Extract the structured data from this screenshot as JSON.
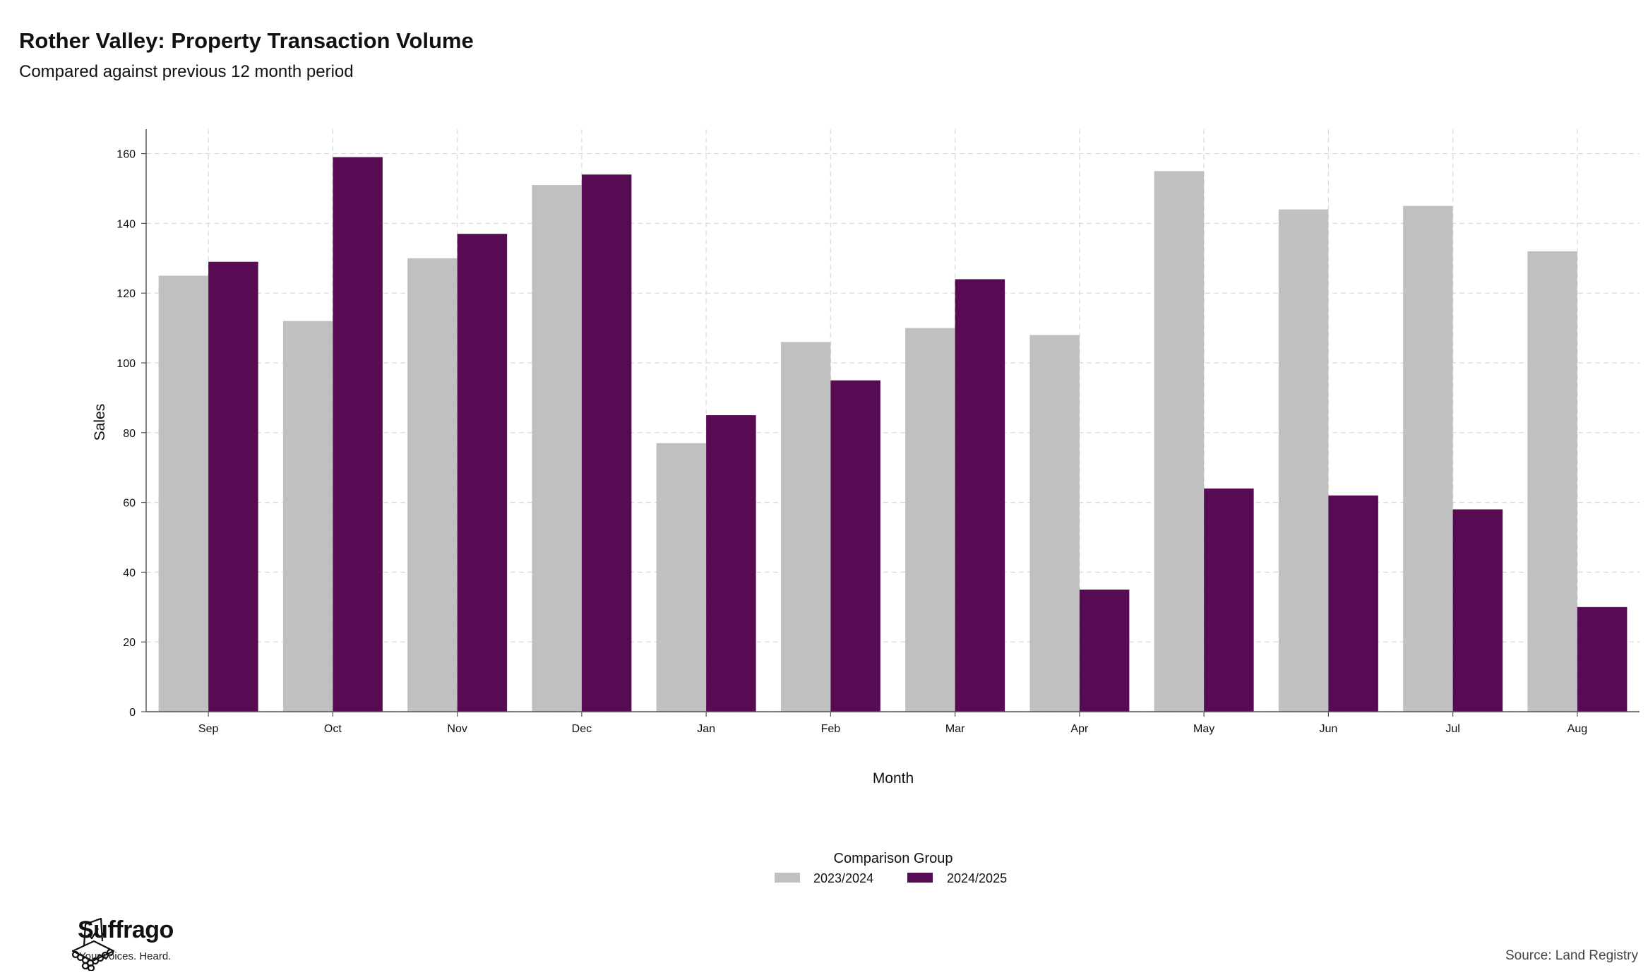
{
  "chart_data": {
    "type": "bar",
    "title": "Rother Valley: Property Transaction Volume",
    "subtitle": "Compared against previous 12 month period",
    "xlabel": "Month",
    "ylabel": "Sales",
    "categories": [
      "Sep",
      "Oct",
      "Nov",
      "Dec",
      "Jan",
      "Feb",
      "Mar",
      "Apr",
      "May",
      "Jun",
      "Jul",
      "Aug"
    ],
    "series": [
      {
        "name": "2023/2024",
        "color": "#c0c0c0",
        "values": [
          125,
          112,
          130,
          151,
          77,
          106,
          110,
          108,
          155,
          144,
          145,
          132
        ]
      },
      {
        "name": "2024/2025",
        "color": "#570b53",
        "values": [
          129,
          159,
          137,
          154,
          85,
          95,
          124,
          35,
          64,
          62,
          58,
          30
        ]
      }
    ],
    "ylim": [
      0,
      167
    ],
    "yticks": [
      0,
      20,
      40,
      60,
      80,
      100,
      120,
      140,
      160
    ],
    "grid": true,
    "legend": {
      "title": "Comparison Group",
      "placement": "bottom"
    }
  },
  "branding": {
    "name": "Suffrago",
    "tagline": "Your voices. Heard."
  },
  "source": "Source: Land Registry"
}
